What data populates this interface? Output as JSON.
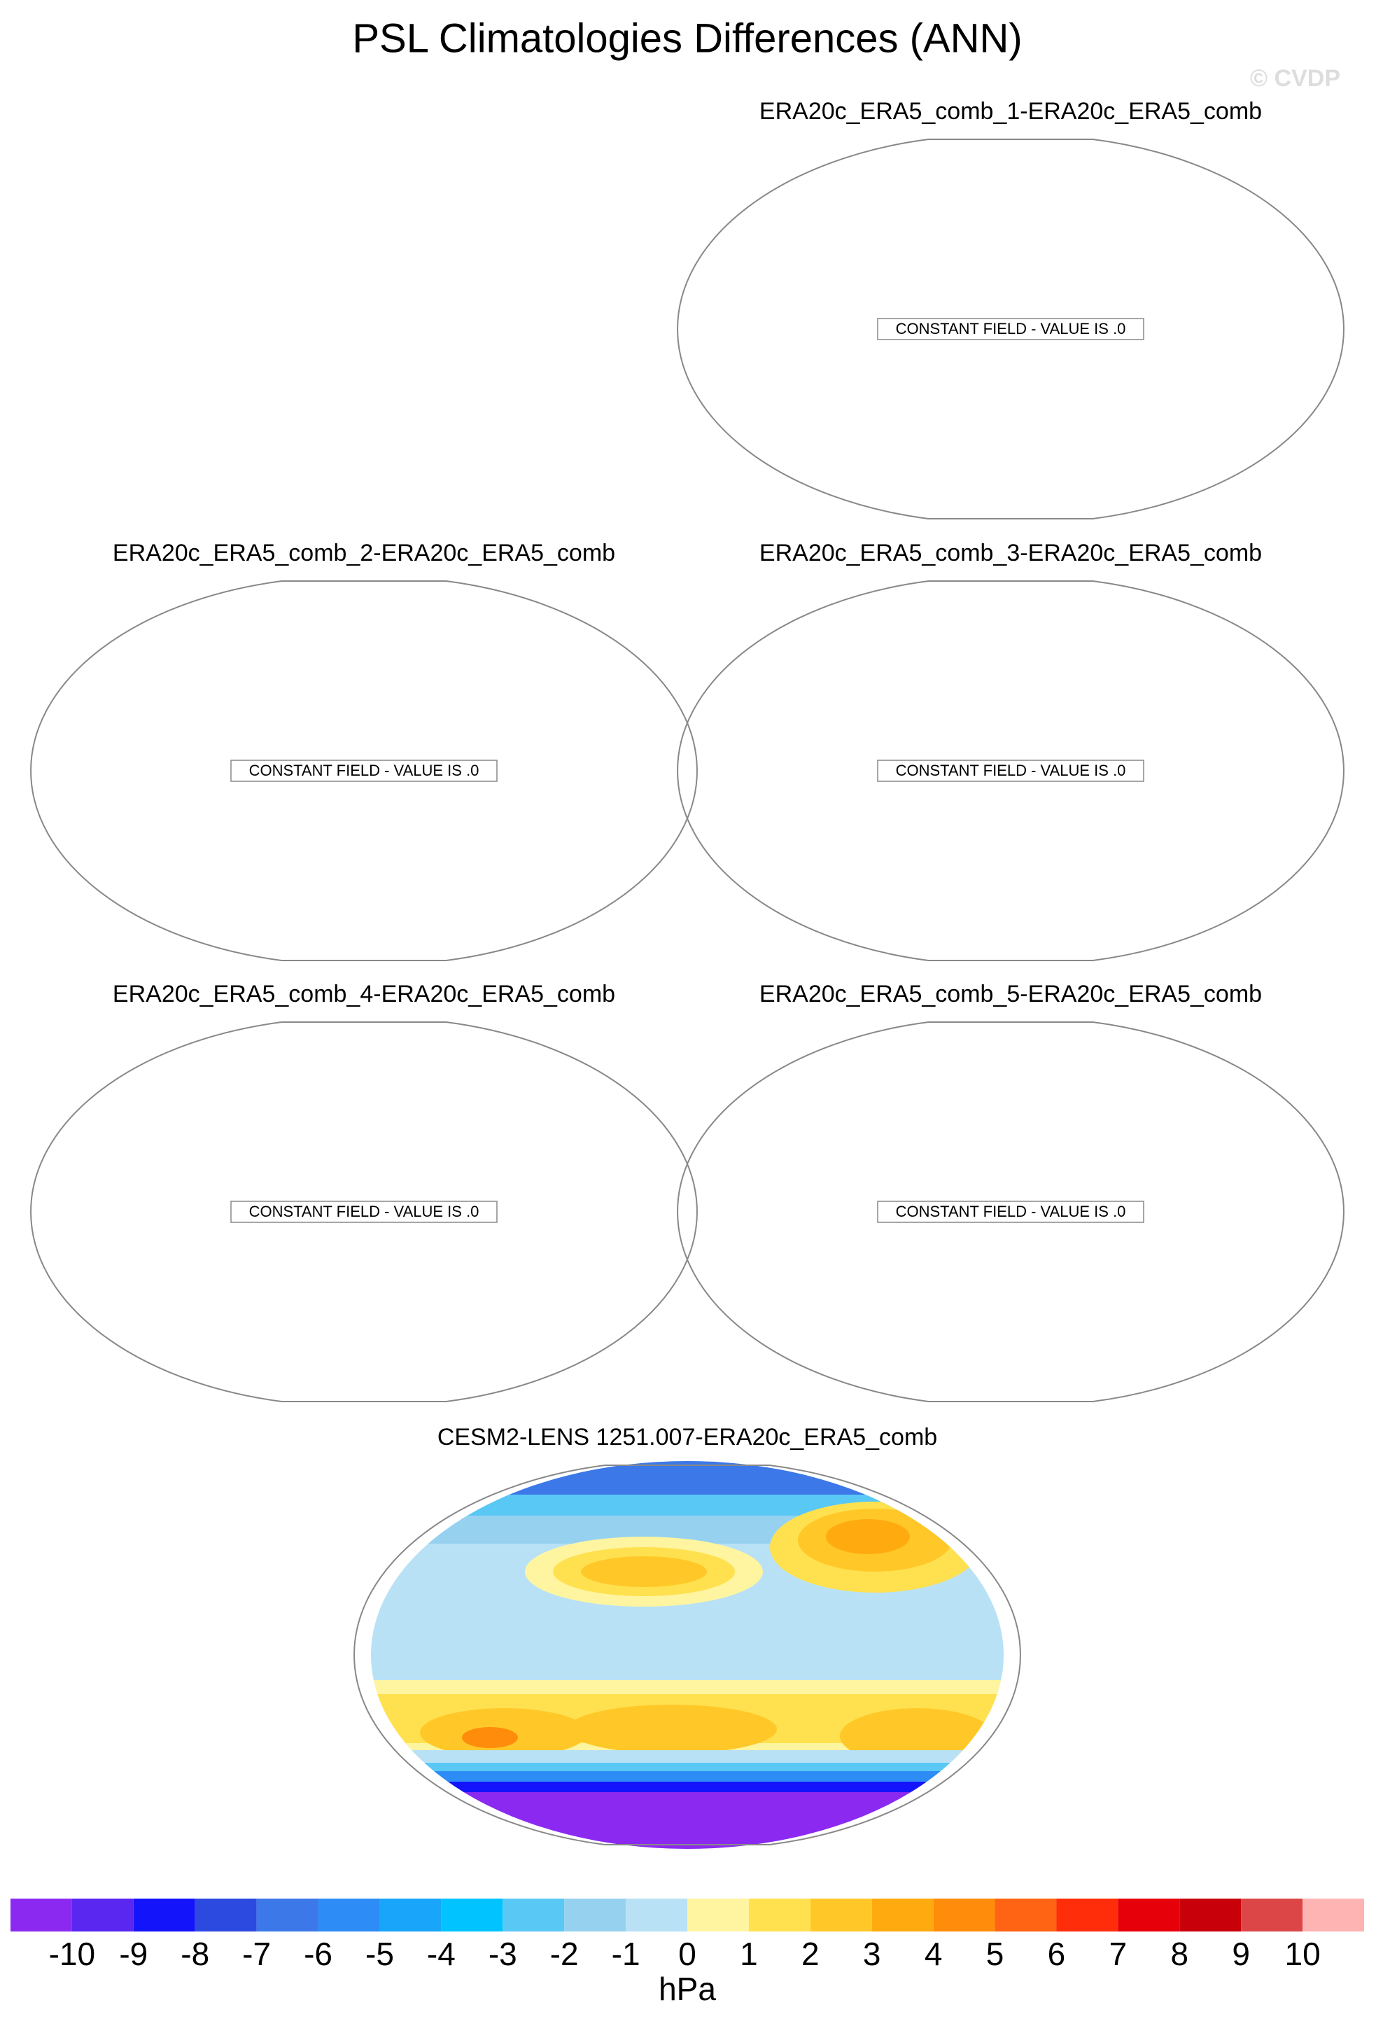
{
  "header": {
    "title": "PSL Climatologies Differences (ANN)",
    "watermark": "© CVDP"
  },
  "panels": [
    {
      "title": "ERA20c_ERA5_comb_1-ERA20c_ERA5_comb",
      "note": "CONSTANT FIELD - VALUE IS .0"
    },
    {
      "title": "ERA20c_ERA5_comb_2-ERA20c_ERA5_comb",
      "note": "CONSTANT FIELD - VALUE IS .0"
    },
    {
      "title": "ERA20c_ERA5_comb_3-ERA20c_ERA5_comb",
      "note": "CONSTANT FIELD - VALUE IS .0"
    },
    {
      "title": "ERA20c_ERA5_comb_4-ERA20c_ERA5_comb",
      "note": "CONSTANT FIELD - VALUE IS .0"
    },
    {
      "title": "ERA20c_ERA5_comb_5-ERA20c_ERA5_comb",
      "note": "CONSTANT FIELD - VALUE IS .0"
    },
    {
      "title": "CESM2-LENS 1251.007-ERA20c_ERA5_comb"
    }
  ],
  "colorbar": {
    "levels": [
      -10,
      -9,
      -8,
      -7,
      -6,
      -5,
      -4,
      -3,
      -2,
      -1,
      0,
      1,
      2,
      3,
      4,
      5,
      6,
      7,
      8,
      9,
      10
    ],
    "colors": [
      "#8c29f0",
      "#5a27f0",
      "#1414fa",
      "#2c4ae0",
      "#3c78e8",
      "#2d8cf5",
      "#19a5fa",
      "#00c3ff",
      "#5ac8f5",
      "#96d2f0",
      "#b9e1f5",
      "#fff5a0",
      "#ffe150",
      "#ffc828",
      "#ffaa0f",
      "#ff8c0a",
      "#ff6414",
      "#ff2d0a",
      "#e6000a",
      "#c8000a",
      "#dc4646",
      "#ffb4b4"
    ],
    "unit": "hPa"
  }
}
